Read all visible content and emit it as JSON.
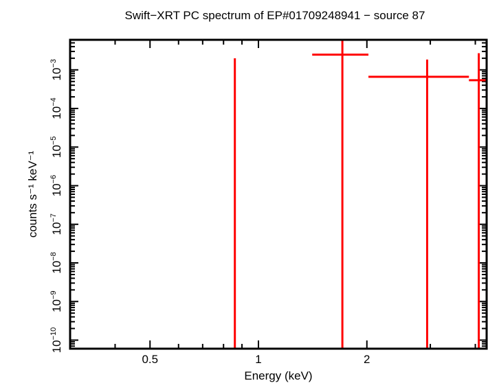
{
  "chart_data": {
    "type": "scatter",
    "title": "Swift−XRT PC spectrum of EP#01709248941 − source 87",
    "xlabel": "Energy (keV)",
    "ylabel": "counts s⁻¹ keV⁻¹",
    "xscale": "log",
    "yscale": "log",
    "xlim": [
      0.3,
      4.3
    ],
    "ylim": [
      6e-11,
      0.006
    ],
    "x_tick_labels": [
      {
        "value": 0.5,
        "label": "0.5"
      },
      {
        "value": 1,
        "label": "1"
      },
      {
        "value": 2,
        "label": "2"
      }
    ],
    "y_tick_labels": [
      {
        "value": 1e-10,
        "base": "10",
        "exp": "−10"
      },
      {
        "value": 1e-09,
        "base": "10",
        "exp": "−9"
      },
      {
        "value": 1e-08,
        "base": "10",
        "exp": "−8"
      },
      {
        "value": 1e-07,
        "base": "10",
        "exp": "−7"
      },
      {
        "value": 1e-06,
        "base": "10",
        "exp": "−6"
      },
      {
        "value": 1e-05,
        "base": "10",
        "exp": "−5"
      },
      {
        "value": 0.0001,
        "base": "10",
        "exp": "−4"
      },
      {
        "value": 0.001,
        "base": "10",
        "exp": "−3"
      }
    ],
    "grid": false,
    "series_color": "#ff0000",
    "points": [
      {
        "x": 0.86,
        "x_lo": 0.858,
        "x_hi": 0.862,
        "y": null,
        "y_lo": null,
        "y_hi": 0.002
      },
      {
        "x": 1.71,
        "x_lo": 1.41,
        "x_hi": 2.02,
        "y": 0.00247,
        "y_lo": null,
        "y_hi": null
      },
      {
        "x": 2.94,
        "x_lo": 2.02,
        "x_hi": 3.84,
        "y": 0.00066,
        "y_lo": null,
        "y_hi": 0.00185
      },
      {
        "x": 4.09,
        "x_lo": 3.84,
        "x_hi": 4.3,
        "y": 0.00054,
        "y_lo": null,
        "y_hi": 0.0027
      }
    ]
  }
}
